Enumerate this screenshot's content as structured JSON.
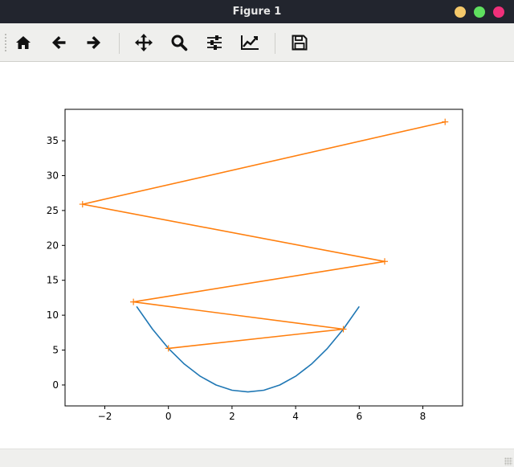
{
  "window": {
    "title": "Figure 1",
    "controls": [
      {
        "name": "minimize",
        "color": "#f5c96a"
      },
      {
        "name": "maximize",
        "color": "#5fe05f"
      },
      {
        "name": "close",
        "color": "#f0307a"
      }
    ]
  },
  "toolbar": {
    "buttons": [
      "home-icon",
      "back-arrow-icon",
      "forward-arrow-icon",
      "pan-icon",
      "zoom-icon",
      "configure-subplots-icon",
      "edit-axes-icon",
      "save-icon"
    ]
  },
  "chart_data": {
    "type": "line",
    "xlim": [
      -3.25,
      9.25
    ],
    "ylim": [
      -3,
      39.5
    ],
    "xticks": [
      -2,
      0,
      2,
      4,
      6,
      8
    ],
    "yticks": [
      0,
      5,
      10,
      15,
      20,
      25,
      30,
      35
    ],
    "xtick_labels": [
      "−2",
      "0",
      "2",
      "4",
      "6",
      "8"
    ],
    "ytick_labels": [
      "0",
      "5",
      "10",
      "15",
      "20",
      "25",
      "30",
      "35"
    ],
    "series": [
      {
        "color": "#1f77b4",
        "marker": "none",
        "x": [
          -1.0,
          -0.5,
          0.0,
          0.5,
          1.0,
          1.5,
          2.0,
          2.5,
          3.0,
          3.5,
          4.0,
          4.5,
          5.0,
          5.5,
          6.0
        ],
        "y": [
          11.25,
          8.0,
          5.25,
          3.0,
          1.25,
          0.0,
          -0.75,
          -1.0,
          -0.75,
          0.0,
          1.25,
          3.0,
          5.25,
          8.0,
          11.25
        ]
      },
      {
        "color": "#ff7f0e",
        "marker": "+",
        "x": [
          0.0,
          5.5,
          -1.1,
          6.8,
          -2.7,
          8.7
        ],
        "y": [
          5.25,
          8.0,
          11.9,
          17.7,
          25.9,
          37.7
        ]
      }
    ]
  }
}
